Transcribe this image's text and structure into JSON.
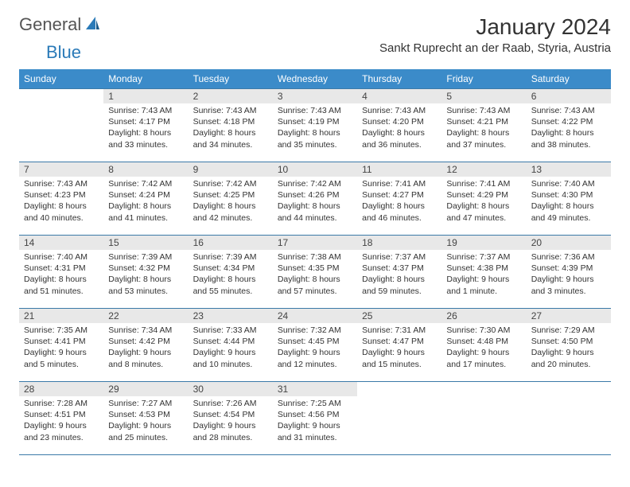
{
  "logo": {
    "general": "General",
    "blue": "Blue"
  },
  "title": "January 2024",
  "location": "Sankt Ruprecht an der Raab, Styria, Austria",
  "colors": {
    "header_bg": "#3b8bc9",
    "header_text": "#ffffff",
    "daynum_bg": "#e8e8e8",
    "border": "#3b7aa8",
    "logo_blue": "#2a7ab8"
  },
  "weekdays": [
    "Sunday",
    "Monday",
    "Tuesday",
    "Wednesday",
    "Thursday",
    "Friday",
    "Saturday"
  ],
  "weeks": [
    [
      null,
      {
        "n": "1",
        "sr": "Sunrise: 7:43 AM",
        "ss": "Sunset: 4:17 PM",
        "d1": "Daylight: 8 hours",
        "d2": "and 33 minutes."
      },
      {
        "n": "2",
        "sr": "Sunrise: 7:43 AM",
        "ss": "Sunset: 4:18 PM",
        "d1": "Daylight: 8 hours",
        "d2": "and 34 minutes."
      },
      {
        "n": "3",
        "sr": "Sunrise: 7:43 AM",
        "ss": "Sunset: 4:19 PM",
        "d1": "Daylight: 8 hours",
        "d2": "and 35 minutes."
      },
      {
        "n": "4",
        "sr": "Sunrise: 7:43 AM",
        "ss": "Sunset: 4:20 PM",
        "d1": "Daylight: 8 hours",
        "d2": "and 36 minutes."
      },
      {
        "n": "5",
        "sr": "Sunrise: 7:43 AM",
        "ss": "Sunset: 4:21 PM",
        "d1": "Daylight: 8 hours",
        "d2": "and 37 minutes."
      },
      {
        "n": "6",
        "sr": "Sunrise: 7:43 AM",
        "ss": "Sunset: 4:22 PM",
        "d1": "Daylight: 8 hours",
        "d2": "and 38 minutes."
      }
    ],
    [
      {
        "n": "7",
        "sr": "Sunrise: 7:43 AM",
        "ss": "Sunset: 4:23 PM",
        "d1": "Daylight: 8 hours",
        "d2": "and 40 minutes."
      },
      {
        "n": "8",
        "sr": "Sunrise: 7:42 AM",
        "ss": "Sunset: 4:24 PM",
        "d1": "Daylight: 8 hours",
        "d2": "and 41 minutes."
      },
      {
        "n": "9",
        "sr": "Sunrise: 7:42 AM",
        "ss": "Sunset: 4:25 PM",
        "d1": "Daylight: 8 hours",
        "d2": "and 42 minutes."
      },
      {
        "n": "10",
        "sr": "Sunrise: 7:42 AM",
        "ss": "Sunset: 4:26 PM",
        "d1": "Daylight: 8 hours",
        "d2": "and 44 minutes."
      },
      {
        "n": "11",
        "sr": "Sunrise: 7:41 AM",
        "ss": "Sunset: 4:27 PM",
        "d1": "Daylight: 8 hours",
        "d2": "and 46 minutes."
      },
      {
        "n": "12",
        "sr": "Sunrise: 7:41 AM",
        "ss": "Sunset: 4:29 PM",
        "d1": "Daylight: 8 hours",
        "d2": "and 47 minutes."
      },
      {
        "n": "13",
        "sr": "Sunrise: 7:40 AM",
        "ss": "Sunset: 4:30 PM",
        "d1": "Daylight: 8 hours",
        "d2": "and 49 minutes."
      }
    ],
    [
      {
        "n": "14",
        "sr": "Sunrise: 7:40 AM",
        "ss": "Sunset: 4:31 PM",
        "d1": "Daylight: 8 hours",
        "d2": "and 51 minutes."
      },
      {
        "n": "15",
        "sr": "Sunrise: 7:39 AM",
        "ss": "Sunset: 4:32 PM",
        "d1": "Daylight: 8 hours",
        "d2": "and 53 minutes."
      },
      {
        "n": "16",
        "sr": "Sunrise: 7:39 AM",
        "ss": "Sunset: 4:34 PM",
        "d1": "Daylight: 8 hours",
        "d2": "and 55 minutes."
      },
      {
        "n": "17",
        "sr": "Sunrise: 7:38 AM",
        "ss": "Sunset: 4:35 PM",
        "d1": "Daylight: 8 hours",
        "d2": "and 57 minutes."
      },
      {
        "n": "18",
        "sr": "Sunrise: 7:37 AM",
        "ss": "Sunset: 4:37 PM",
        "d1": "Daylight: 8 hours",
        "d2": "and 59 minutes."
      },
      {
        "n": "19",
        "sr": "Sunrise: 7:37 AM",
        "ss": "Sunset: 4:38 PM",
        "d1": "Daylight: 9 hours",
        "d2": "and 1 minute."
      },
      {
        "n": "20",
        "sr": "Sunrise: 7:36 AM",
        "ss": "Sunset: 4:39 PM",
        "d1": "Daylight: 9 hours",
        "d2": "and 3 minutes."
      }
    ],
    [
      {
        "n": "21",
        "sr": "Sunrise: 7:35 AM",
        "ss": "Sunset: 4:41 PM",
        "d1": "Daylight: 9 hours",
        "d2": "and 5 minutes."
      },
      {
        "n": "22",
        "sr": "Sunrise: 7:34 AM",
        "ss": "Sunset: 4:42 PM",
        "d1": "Daylight: 9 hours",
        "d2": "and 8 minutes."
      },
      {
        "n": "23",
        "sr": "Sunrise: 7:33 AM",
        "ss": "Sunset: 4:44 PM",
        "d1": "Daylight: 9 hours",
        "d2": "and 10 minutes."
      },
      {
        "n": "24",
        "sr": "Sunrise: 7:32 AM",
        "ss": "Sunset: 4:45 PM",
        "d1": "Daylight: 9 hours",
        "d2": "and 12 minutes."
      },
      {
        "n": "25",
        "sr": "Sunrise: 7:31 AM",
        "ss": "Sunset: 4:47 PM",
        "d1": "Daylight: 9 hours",
        "d2": "and 15 minutes."
      },
      {
        "n": "26",
        "sr": "Sunrise: 7:30 AM",
        "ss": "Sunset: 4:48 PM",
        "d1": "Daylight: 9 hours",
        "d2": "and 17 minutes."
      },
      {
        "n": "27",
        "sr": "Sunrise: 7:29 AM",
        "ss": "Sunset: 4:50 PM",
        "d1": "Daylight: 9 hours",
        "d2": "and 20 minutes."
      }
    ],
    [
      {
        "n": "28",
        "sr": "Sunrise: 7:28 AM",
        "ss": "Sunset: 4:51 PM",
        "d1": "Daylight: 9 hours",
        "d2": "and 23 minutes."
      },
      {
        "n": "29",
        "sr": "Sunrise: 7:27 AM",
        "ss": "Sunset: 4:53 PM",
        "d1": "Daylight: 9 hours",
        "d2": "and 25 minutes."
      },
      {
        "n": "30",
        "sr": "Sunrise: 7:26 AM",
        "ss": "Sunset: 4:54 PM",
        "d1": "Daylight: 9 hours",
        "d2": "and 28 minutes."
      },
      {
        "n": "31",
        "sr": "Sunrise: 7:25 AM",
        "ss": "Sunset: 4:56 PM",
        "d1": "Daylight: 9 hours",
        "d2": "and 31 minutes."
      },
      null,
      null,
      null
    ]
  ]
}
